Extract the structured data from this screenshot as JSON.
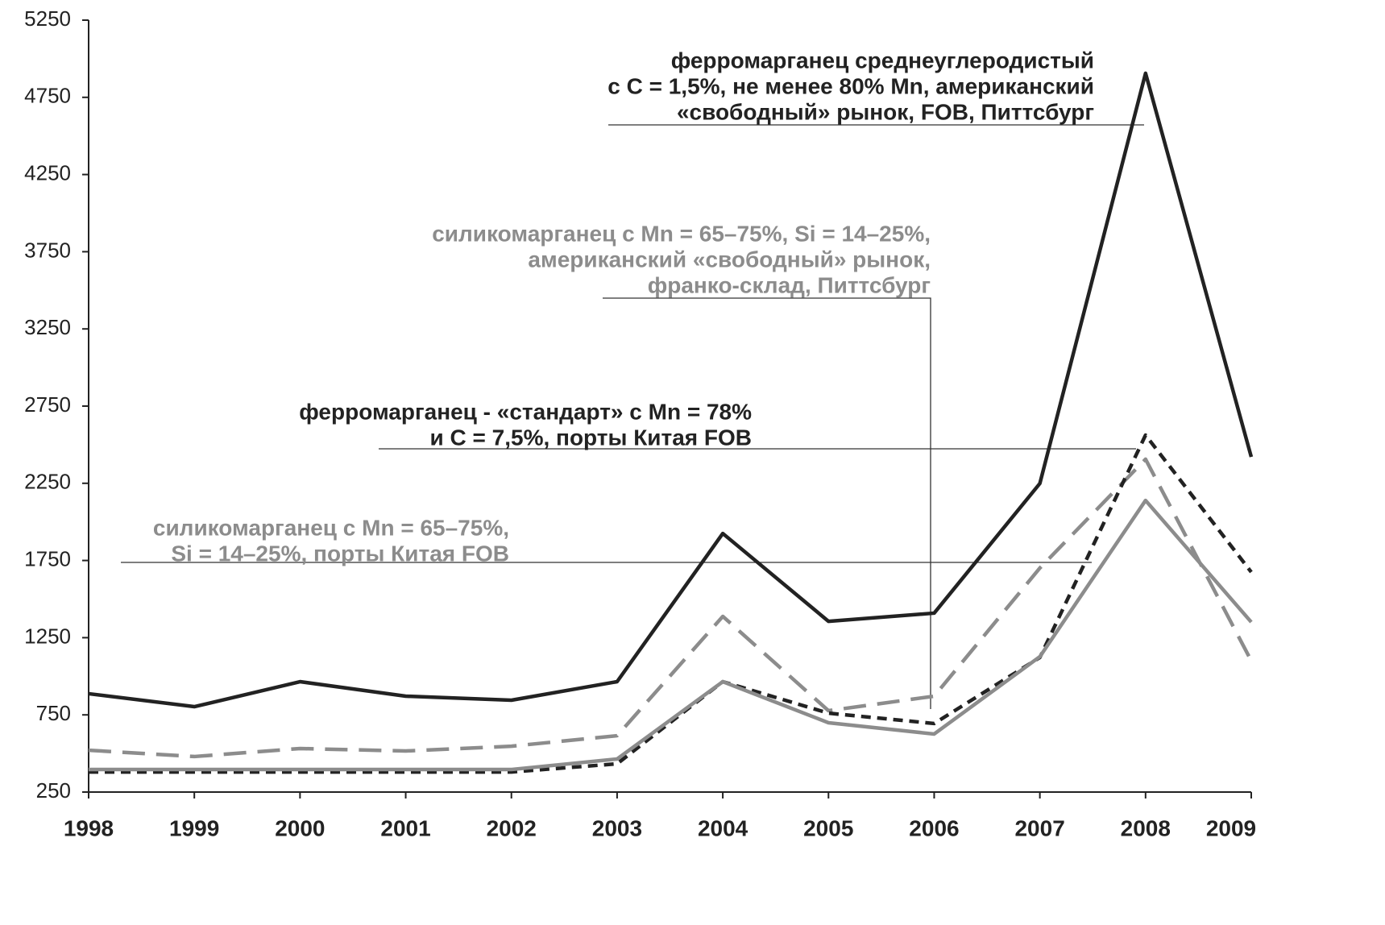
{
  "chart_data": {
    "type": "line",
    "categories": [
      "1998",
      "1999",
      "2000",
      "2001",
      "2002",
      "2003",
      "2004",
      "2005",
      "2006",
      "2007",
      "2008",
      "2009"
    ],
    "ylim": [
      250,
      5250
    ],
    "yticks": [
      250,
      750,
      1250,
      1750,
      2250,
      2750,
      3250,
      3750,
      4250,
      4750,
      5250
    ],
    "series": [
      {
        "color": "#222222",
        "dash": "solid",
        "values": [
          887,
          803,
          965,
          871,
          845,
          965,
          1925,
          1356,
          1409,
          2249,
          4906,
          2421
        ]
      },
      {
        "color": "#8c8c8c",
        "dash": "dashed",
        "values": [
          521,
          480,
          532,
          516,
          547,
          615,
          1388,
          777,
          871,
          1701,
          2406,
          1100
        ]
      },
      {
        "color": "#222222",
        "dash": "dotted",
        "values": [
          380,
          380,
          380,
          380,
          380,
          433,
          965,
          761,
          694,
          1122,
          2562,
          1675
        ]
      },
      {
        "color": "#8c8c8c",
        "dash": "solid",
        "values": [
          396,
          396,
          396,
          396,
          396,
          464,
          965,
          699,
          626,
          1127,
          2139,
          1351
        ]
      }
    ],
    "annotations": [
      {
        "color": "#222222",
        "lines": [
          "ферромарганец среднеуглеродистый",
          "с С = 1,5%, не менее 80% Mn, американский",
          "«свободный» рынок, FOB, Питтсбург"
        ]
      },
      {
        "color": "#8c8c8c",
        "lines": [
          "силикомарганец с Mn = 65–75%, Si = 14–25%,",
          "американский «свободный» рынок,",
          "франко-склад, Питтсбург"
        ]
      },
      {
        "color": "#222222",
        "lines": [
          "ферромарганец - «стандарт» с Mn = 78%",
          "и С = 7,5%, порты Китая FOB"
        ]
      },
      {
        "color": "#8c8c8c",
        "lines": [
          "силикомарганец с Mn = 65–75%,",
          "Si = 14–25%, порты Китая FOB"
        ]
      }
    ]
  }
}
